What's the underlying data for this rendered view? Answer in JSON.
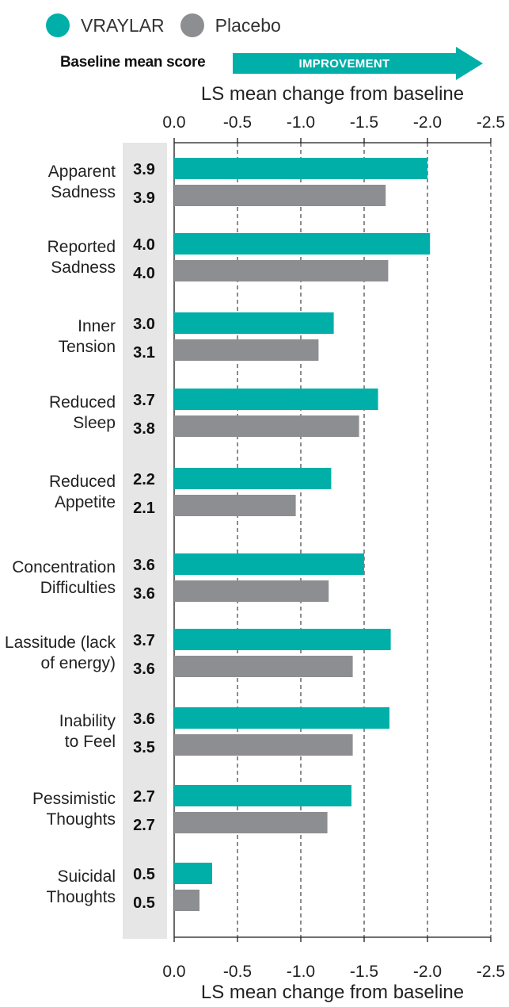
{
  "colors": {
    "vraylar": "#00AFA8",
    "placebo": "#8C8E91",
    "baseline_column": "#E6E6E6",
    "axis": "#1A1A1A",
    "grid": "#1A1A1A"
  },
  "legend": {
    "items": [
      {
        "label": "VRAYLAR",
        "color": "#00AFA8"
      },
      {
        "label": "Placebo",
        "color": "#8C8E91"
      }
    ]
  },
  "header": {
    "baseline_title": "Baseline mean score",
    "arrow_label": "IMPROVEMENT"
  },
  "chart_data": {
    "type": "bar",
    "orientation": "horizontal",
    "xlabel": "LS mean change from baseline",
    "xlim": [
      0,
      -2.5
    ],
    "xticks": [
      0.0,
      -0.5,
      -1.0,
      -1.5,
      -2.0,
      -2.5
    ],
    "xtick_labels": [
      "0.0",
      "-0.5",
      "-1.0",
      "-1.5",
      "-2.0",
      "-2.5"
    ],
    "grid": "vertical dashed",
    "legend_position": "top-left",
    "categories": [
      [
        "Apparent",
        "Sadness"
      ],
      [
        "Reported",
        "Sadness"
      ],
      [
        "Inner",
        "Tension"
      ],
      [
        "Reduced",
        "Sleep"
      ],
      [
        "Reduced",
        "Appetite"
      ],
      [
        "Concentration",
        "Difficulties"
      ],
      [
        "Lassitude (lack",
        "of energy)"
      ],
      [
        "Inability",
        "to Feel"
      ],
      [
        "Pessimistic",
        "Thoughts"
      ],
      [
        "Suicidal",
        "Thoughts"
      ]
    ],
    "series": [
      {
        "name": "VRAYLAR",
        "color": "#00AFA8",
        "values": [
          -2.0,
          -2.02,
          -1.26,
          -1.61,
          -1.24,
          -1.5,
          -1.71,
          -1.7,
          -1.4,
          -0.3
        ],
        "baseline": [
          "3.9",
          "4.0",
          "3.0",
          "3.7",
          "2.2",
          "3.6",
          "3.7",
          "3.6",
          "2.7",
          "0.5"
        ]
      },
      {
        "name": "Placebo",
        "color": "#8C8E91",
        "values": [
          -1.67,
          -1.69,
          -1.14,
          -1.46,
          -0.96,
          -1.22,
          -1.41,
          -1.41,
          -1.21,
          -0.2
        ],
        "baseline": [
          "3.9",
          "4.0",
          "3.1",
          "3.8",
          "2.1",
          "3.6",
          "3.6",
          "3.5",
          "2.7",
          "0.5"
        ]
      }
    ]
  }
}
